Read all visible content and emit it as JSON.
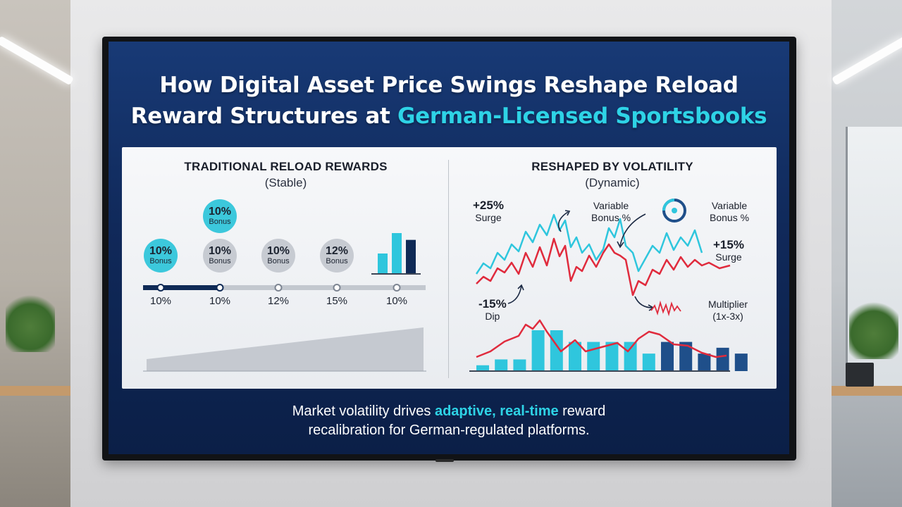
{
  "title": {
    "line1": "How Digital Asset Price Swings Reshape Reload",
    "line2_prefix": "Reward Structures at ",
    "line2_highlight": "German-Licensed Sportsbooks"
  },
  "left_panel": {
    "heading": "TRADITIONAL RELOAD REWARDS",
    "subheading": "(Stable)",
    "bubbles": [
      {
        "percent": "10%",
        "label": "Bonus",
        "style": "cyan"
      },
      {
        "percent": "10%",
        "label": "Bonus",
        "style": "cyan"
      },
      {
        "percent": "10%",
        "label": "Bonus",
        "style": "grey"
      },
      {
        "percent": "10%",
        "label": "Bonus",
        "style": "grey"
      },
      {
        "percent": "12%",
        "label": "Bonus",
        "style": "grey"
      }
    ],
    "timeline_labels": [
      "10%",
      "10%",
      "12%",
      "15%",
      "10%"
    ],
    "mini_bar_values": [
      3,
      6,
      5
    ]
  },
  "right_panel": {
    "heading": "RESHAPED BY VOLATILITY",
    "subheading": "(Dynamic)",
    "annotations": {
      "surge_left": {
        "value": "+25%",
        "text": "Surge"
      },
      "variable_1": {
        "value": "Variable",
        "text": "Bonus %"
      },
      "variable_2": {
        "value": "Variable",
        "text": "Bonus %"
      },
      "surge_right": {
        "value": "+15%",
        "text": "Surge"
      },
      "dip": {
        "value": "-15%",
        "text": "Dip"
      },
      "multiplier": {
        "value": "Multiplier",
        "text": "(1x-3x)"
      }
    },
    "bar_values": [
      1,
      2,
      2,
      7,
      7,
      5,
      5,
      5,
      5,
      3,
      5,
      5,
      3,
      4,
      3
    ]
  },
  "footer": {
    "line1_prefix": "Market volatility drives ",
    "line1_highlight": "adaptive, real-time",
    "line1_suffix": " reward",
    "line2": "recalibration for German-regulated platforms."
  },
  "colors": {
    "accent": "#2ed3e6",
    "screen_top": "#183a76",
    "screen_bottom": "#0b1f47",
    "series_cyan": "#2fc6dd",
    "series_red": "#e02b3d",
    "bar_navy": "#1f4f8a",
    "timeline_navy": "#0f2a56"
  }
}
